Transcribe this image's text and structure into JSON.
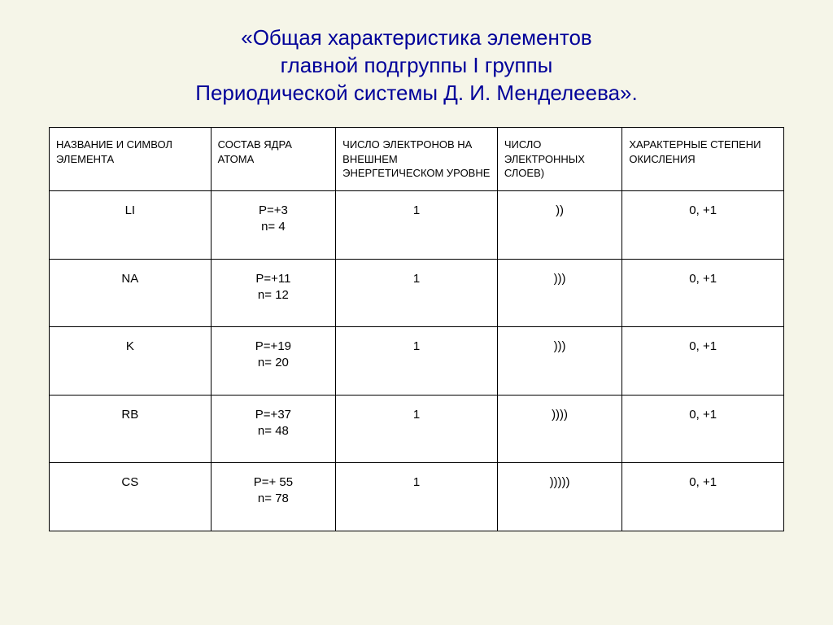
{
  "title": {
    "line1": "«Общая характеристика элементов",
    "line2": "главной подгруппы I группы",
    "line3": "Периодической системы Д. И. Менделеева».",
    "color": "#000099",
    "fontsize": 26
  },
  "table": {
    "background_color": "#ffffff",
    "border_color": "#000000",
    "header_fontsize": 13,
    "cell_fontsize": 15,
    "columns": [
      {
        "key": "element",
        "label": "НАЗВАНИЕ  И СИМВОЛ ЭЛЕМЕНТА",
        "width_pct": 22
      },
      {
        "key": "nucleus",
        "label": "СОСТАВ  ЯДРА АТОМА",
        "width_pct": 17
      },
      {
        "key": "outer",
        "label": "ЧИСЛО ЭЛЕКТРОНОВ НА ВНЕШНЕМ ЭНЕРГЕТИЧЕСКОМ УРОВНЕ",
        "width_pct": 22
      },
      {
        "key": "layers",
        "label": "ЧИСЛО ЭЛЕКТРОННЫХ СЛОЕВ)",
        "width_pct": 17
      },
      {
        "key": "ox",
        "label": "ХАРАКТЕРНЫЕ СТЕПЕНИ ОКИСЛЕНИЯ",
        "width_pct": 22
      }
    ],
    "rows": [
      {
        "element": "LI",
        "nucleus": "P=+3\nn= 4",
        "outer": "1",
        "layers": "))",
        "ox": "0, +1"
      },
      {
        "element": "NA",
        "nucleus": "P=+11\nn= 12",
        "outer": "1",
        "layers": ")))",
        "ox": "0, +1"
      },
      {
        "element": "K",
        "nucleus": "P=+19\nn= 20",
        "outer": "1",
        "layers": ")))",
        "ox": "0, +1"
      },
      {
        "element": "RB",
        "nucleus": "P=+37\nn= 48",
        "outer": "1",
        "layers": "))))",
        "ox": "0, +1"
      },
      {
        "element": "CS",
        "nucleus": "P=+ 55\nn= 78",
        "outer": "1",
        "layers": ")))))",
        "ox": "0, +1"
      }
    ]
  },
  "slide_background": "#f5f5e8"
}
